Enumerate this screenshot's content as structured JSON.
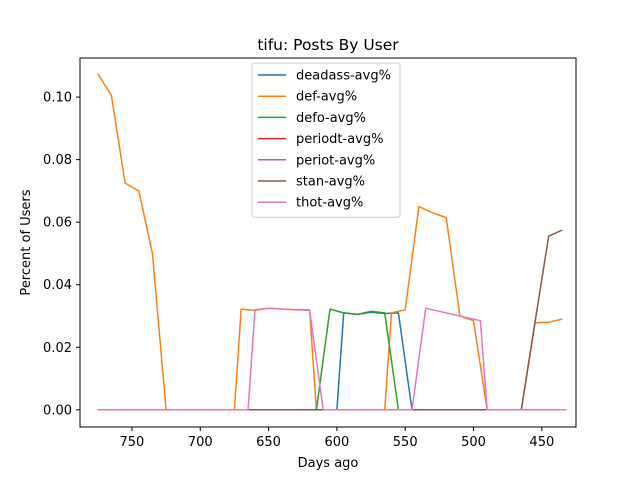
{
  "chart_data": {
    "type": "line",
    "title": "tifu: Posts By User",
    "xlabel": "Days ago",
    "ylabel": "Percent of Users",
    "x_inverted": true,
    "xlim": [
      788,
      425
    ],
    "ylim": [
      -0.0055,
      0.1125
    ],
    "xticks": [
      750,
      700,
      650,
      600,
      550,
      500,
      450
    ],
    "xtick_labels": [
      "750",
      "700",
      "650",
      "600",
      "550",
      "500",
      "450"
    ],
    "yticks": [
      0.0,
      0.02,
      0.04,
      0.06,
      0.08,
      0.1
    ],
    "ytick_labels": [
      "0.00",
      "0.02",
      "0.04",
      "0.06",
      "0.08",
      "0.10"
    ],
    "grid": false,
    "legend_position": "upper-center",
    "series": [
      {
        "name": "deadass-avg%",
        "color": "#1f77b4",
        "points": [
          [
            775,
            0
          ],
          [
            600,
            0
          ],
          [
            595,
            0.031
          ],
          [
            585,
            0.0305
          ],
          [
            575,
            0.0312
          ],
          [
            565,
            0.0308
          ],
          [
            555,
            0.031
          ],
          [
            545,
            0
          ],
          [
            432,
            0
          ]
        ]
      },
      {
        "name": "def-avg%",
        "color": "#ff7f0e",
        "points": [
          [
            775,
            0.1075
          ],
          [
            765,
            0.1005
          ],
          [
            755,
            0.0725
          ],
          [
            745,
            0.07
          ],
          [
            735,
            0.05
          ],
          [
            725,
            0
          ],
          [
            675,
            0
          ],
          [
            670,
            0.0322
          ],
          [
            660,
            0.0318
          ],
          [
            650,
            0.0325
          ],
          [
            640,
            0.0322
          ],
          [
            630,
            0.032
          ],
          [
            620,
            0.032
          ],
          [
            615,
            0
          ],
          [
            565,
            0
          ],
          [
            560,
            0.031
          ],
          [
            550,
            0.032
          ],
          [
            540,
            0.065
          ],
          [
            530,
            0.063
          ],
          [
            520,
            0.0615
          ],
          [
            510,
            0.03
          ],
          [
            500,
            0.0285
          ],
          [
            490,
            0
          ],
          [
            465,
            0
          ],
          [
            455,
            0.0278
          ],
          [
            445,
            0.028
          ],
          [
            435,
            0.029
          ]
        ]
      },
      {
        "name": "defo-avg%",
        "color": "#2ca02c",
        "points": [
          [
            775,
            0
          ],
          [
            615,
            0
          ],
          [
            605,
            0.0322
          ],
          [
            595,
            0.031
          ],
          [
            585,
            0.0305
          ],
          [
            575,
            0.0315
          ],
          [
            565,
            0.031
          ],
          [
            555,
            0
          ],
          [
            432,
            0
          ]
        ]
      },
      {
        "name": "periodt-avg%",
        "color": "#d62728",
        "points": [
          [
            775,
            0
          ],
          [
            432,
            0
          ]
        ]
      },
      {
        "name": "periot-avg%",
        "color": "#9467bd",
        "points": [
          [
            775,
            0
          ],
          [
            432,
            0
          ]
        ]
      },
      {
        "name": "stan-avg%",
        "color": "#8c564b",
        "points": [
          [
            775,
            0
          ],
          [
            465,
            0
          ],
          [
            455,
            0.028
          ],
          [
            445,
            0.0555
          ],
          [
            435,
            0.0575
          ]
        ]
      },
      {
        "name": "thot-avg%",
        "color": "#e377c2",
        "points": [
          [
            775,
            0
          ],
          [
            665,
            0
          ],
          [
            660,
            0.032
          ],
          [
            650,
            0.0325
          ],
          [
            640,
            0.0322
          ],
          [
            630,
            0.032
          ],
          [
            620,
            0.0318
          ],
          [
            610,
            0
          ],
          [
            545,
            0
          ],
          [
            535,
            0.0325
          ],
          [
            525,
            0.0315
          ],
          [
            515,
            0.0305
          ],
          [
            505,
            0.0295
          ],
          [
            495,
            0.0285
          ],
          [
            490,
            0
          ],
          [
            432,
            0
          ]
        ]
      }
    ]
  }
}
